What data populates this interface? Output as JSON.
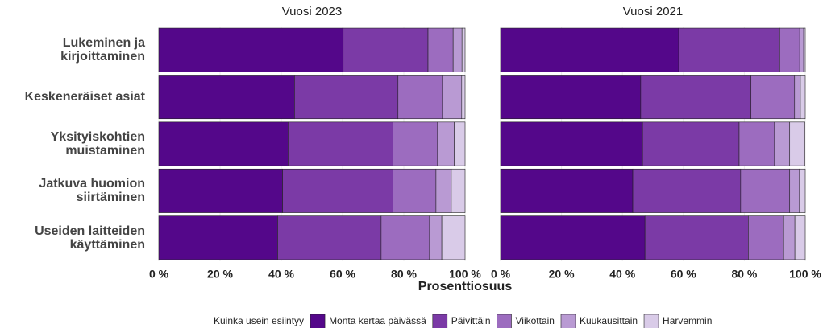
{
  "chart_data": {
    "type": "bar",
    "orientation": "horizontal",
    "stacked": true,
    "categories": [
      "Lukeminen ja kirjoittaminen",
      "Keskeneräiset asiat",
      "Yksityiskohtien muistaminen",
      "Jatkuva huomion siirtäminen",
      "Useiden laitteiden käyttäminen"
    ],
    "series": [
      {
        "name": "Monta kertaa päivässä",
        "color": "#54078a"
      },
      {
        "name": "Päivittäin",
        "color": "#7b3aa6"
      },
      {
        "name": "Viikottain",
        "color": "#9c6cbf"
      },
      {
        "name": "Kuukausittain",
        "color": "#b99ad3"
      },
      {
        "name": "Harvemmin",
        "color": "#d9cbe8"
      }
    ],
    "facets": [
      {
        "title": "Vuosi 2023",
        "series": [
          {
            "values": [
              60.2,
              44.3,
              42.2,
              40.4,
              38.8
            ]
          },
          {
            "values": [
              27.7,
              33.8,
              34.3,
              36.1,
              33.8
            ]
          },
          {
            "values": [
              8.2,
              14.5,
              14.5,
              14.0,
              15.8
            ]
          },
          {
            "values": [
              2.9,
              6.3,
              5.5,
              5.0,
              4.0
            ]
          },
          {
            "values": [
              1.0,
              1.1,
              3.5,
              4.5,
              7.6
            ]
          }
        ]
      },
      {
        "title": "Vuosi 2021",
        "series": [
          {
            "values": [
              58.5,
              46.0,
              46.6,
              43.4,
              47.4
            ]
          },
          {
            "values": [
              33.1,
              36.2,
              31.7,
              35.4,
              33.9
            ]
          },
          {
            "values": [
              6.6,
              14.3,
              11.6,
              16.1,
              11.6
            ]
          },
          {
            "values": [
              1.3,
              1.9,
              5.0,
              3.2,
              3.7
            ]
          },
          {
            "values": [
              0.5,
              1.6,
              5.0,
              1.9,
              3.4
            ]
          }
        ]
      }
    ],
    "xlim": [
      0,
      100
    ],
    "xticks": [
      {
        "value": 0,
        "label": "0 %"
      },
      {
        "value": 20,
        "label": "20 %"
      },
      {
        "value": 40,
        "label": "40 %"
      },
      {
        "value": 60,
        "label": "60 %"
      },
      {
        "value": 80,
        "label": "80 %"
      },
      {
        "value": 100,
        "label": "100 %"
      }
    ],
    "xlabel": "Prosenttiosuus",
    "legend_title": "Kuinka usein esiintyy",
    "grid": true,
    "legend": "bottom"
  }
}
